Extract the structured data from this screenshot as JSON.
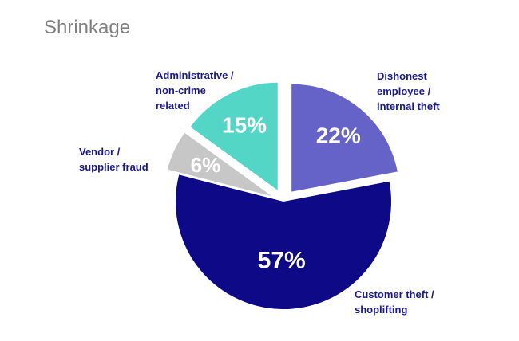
{
  "chart_data": {
    "type": "pie",
    "title": "Shrinkage",
    "slices": [
      {
        "label": "Dishonest\nemployee  /\ninternal theft",
        "value": 22,
        "display": "22%",
        "color": "#6563c7",
        "exploded": true
      },
      {
        "label": "Customer theft /\nshoplifting",
        "value": 57,
        "display": "57%",
        "color": "#0d0987",
        "exploded": false
      },
      {
        "label": "Vendor /\nsupplier fraud",
        "value": 6,
        "display": "6%",
        "color": "#c7c7c7",
        "exploded": true
      },
      {
        "label": "Administrative /\nnon-crime\nrelated",
        "value": 15,
        "display": "15%",
        "color": "#53d6c6",
        "exploded": true
      }
    ]
  }
}
